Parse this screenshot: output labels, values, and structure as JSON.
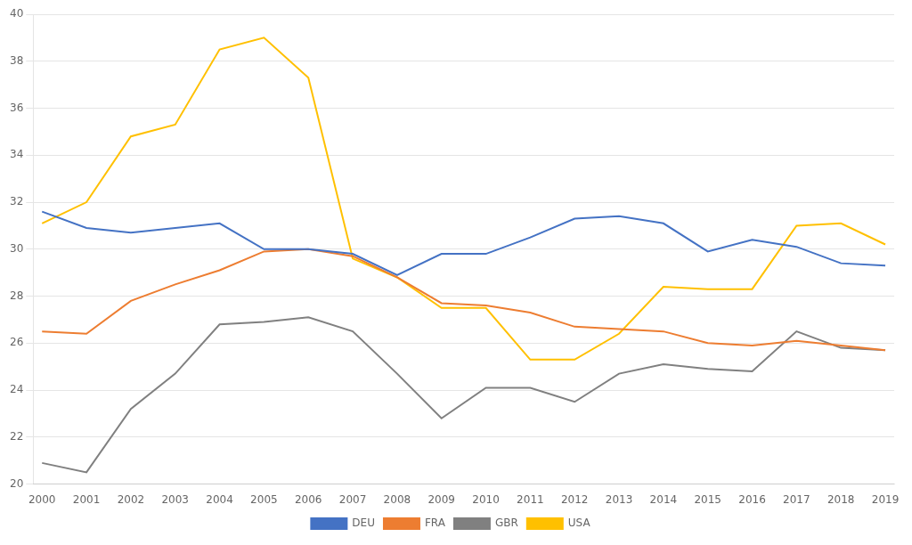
{
  "chart_data": {
    "type": "line",
    "x": [
      2000,
      2001,
      2002,
      2003,
      2004,
      2005,
      2006,
      2007,
      2008,
      2009,
      2010,
      2011,
      2012,
      2013,
      2014,
      2015,
      2016,
      2017,
      2018,
      2019
    ],
    "series": [
      {
        "name": "DEU",
        "color": "#4472C4",
        "values": [
          31.6,
          30.9,
          30.7,
          30.9,
          31.1,
          30.0,
          30.0,
          29.8,
          28.9,
          29.8,
          29.8,
          30.5,
          31.3,
          31.4,
          31.1,
          29.9,
          30.4,
          30.1,
          29.4,
          29.3
        ]
      },
      {
        "name": "FRA",
        "color": "#ED7D31",
        "values": [
          26.5,
          26.4,
          27.8,
          28.5,
          29.1,
          29.9,
          30.0,
          29.7,
          28.8,
          27.7,
          27.6,
          27.3,
          26.7,
          26.6,
          26.5,
          26.0,
          25.9,
          26.1,
          25.9,
          25.7
        ]
      },
      {
        "name": "GBR",
        "color": "#808080",
        "values": [
          20.9,
          20.5,
          23.2,
          24.7,
          26.8,
          26.9,
          27.1,
          26.5,
          24.7,
          22.8,
          24.1,
          24.1,
          23.5,
          24.7,
          25.1,
          24.9,
          24.8,
          26.5,
          25.8,
          25.7
        ]
      },
      {
        "name": "USA",
        "color": "#FFC000",
        "values": [
          31.1,
          32.0,
          34.8,
          35.3,
          38.5,
          39.0,
          37.3,
          29.6,
          28.8,
          27.5,
          27.5,
          25.3,
          25.3,
          26.4,
          28.4,
          28.3,
          28.3,
          31.0,
          31.1,
          30.2
        ]
      }
    ],
    "xlim": [
      1999.8,
      2019.2
    ],
    "xticks": [
      2000,
      2001,
      2002,
      2003,
      2004,
      2005,
      2006,
      2007,
      2008,
      2009,
      2010,
      2011,
      2012,
      2013,
      2014,
      2015,
      2016,
      2017,
      2018,
      2019
    ],
    "ylim": [
      20,
      40
    ],
    "yticks": [
      20,
      22,
      24,
      26,
      28,
      30,
      32,
      34,
      36,
      38,
      40
    ],
    "grid": "y",
    "legend": "bottom"
  }
}
